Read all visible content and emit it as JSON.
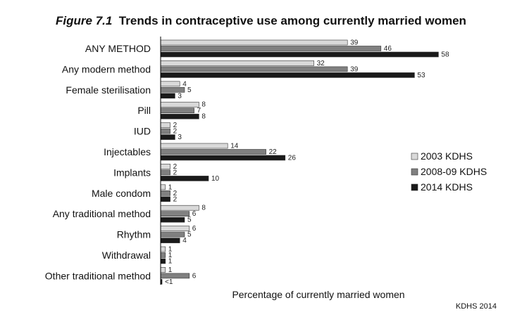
{
  "figure_label": "Figure 7.1",
  "figure_title": "Trends in contraceptive use among currently married women",
  "source": "KDHS 2014",
  "chart_data": {
    "type": "bar",
    "orientation": "horizontal",
    "categories": [
      "ANY METHOD",
      "Any modern method",
      "Female sterilisation",
      "Pill",
      "IUD",
      "Injectables",
      "Implants",
      "Male condom",
      "Any traditional method",
      "Rhythm",
      "Withdrawal",
      "Other traditional method"
    ],
    "series": [
      {
        "name": "2003 KDHS",
        "color": "#d9d9d9",
        "values": [
          39,
          32,
          4,
          8,
          2,
          14,
          2,
          1,
          8,
          6,
          1,
          1
        ],
        "labels": [
          "39",
          "32",
          "4",
          "8",
          "2",
          "14",
          "2",
          "1",
          "8",
          "6",
          "1",
          "1"
        ]
      },
      {
        "name": "2008-09 KDHS",
        "color": "#808080",
        "values": [
          46,
          39,
          5,
          7,
          2,
          22,
          2,
          2,
          6,
          5,
          1,
          6
        ],
        "labels": [
          "46",
          "39",
          "5",
          "7",
          "2",
          "22",
          "2",
          "2",
          "6",
          "5",
          "1",
          "6"
        ]
      },
      {
        "name": "2014 KDHS",
        "color": "#1a1a1a",
        "values": [
          58,
          53,
          3,
          8,
          3,
          26,
          10,
          2,
          5,
          4,
          1,
          0.3
        ],
        "labels": [
          "58",
          "53",
          "3",
          "8",
          "3",
          "26",
          "10",
          "2",
          "5",
          "4",
          "1",
          "<1"
        ]
      }
    ],
    "xlabel": "Percentage of currently married women",
    "xlim": [
      0,
      70
    ],
    "grid": false,
    "legend_position": "right"
  }
}
